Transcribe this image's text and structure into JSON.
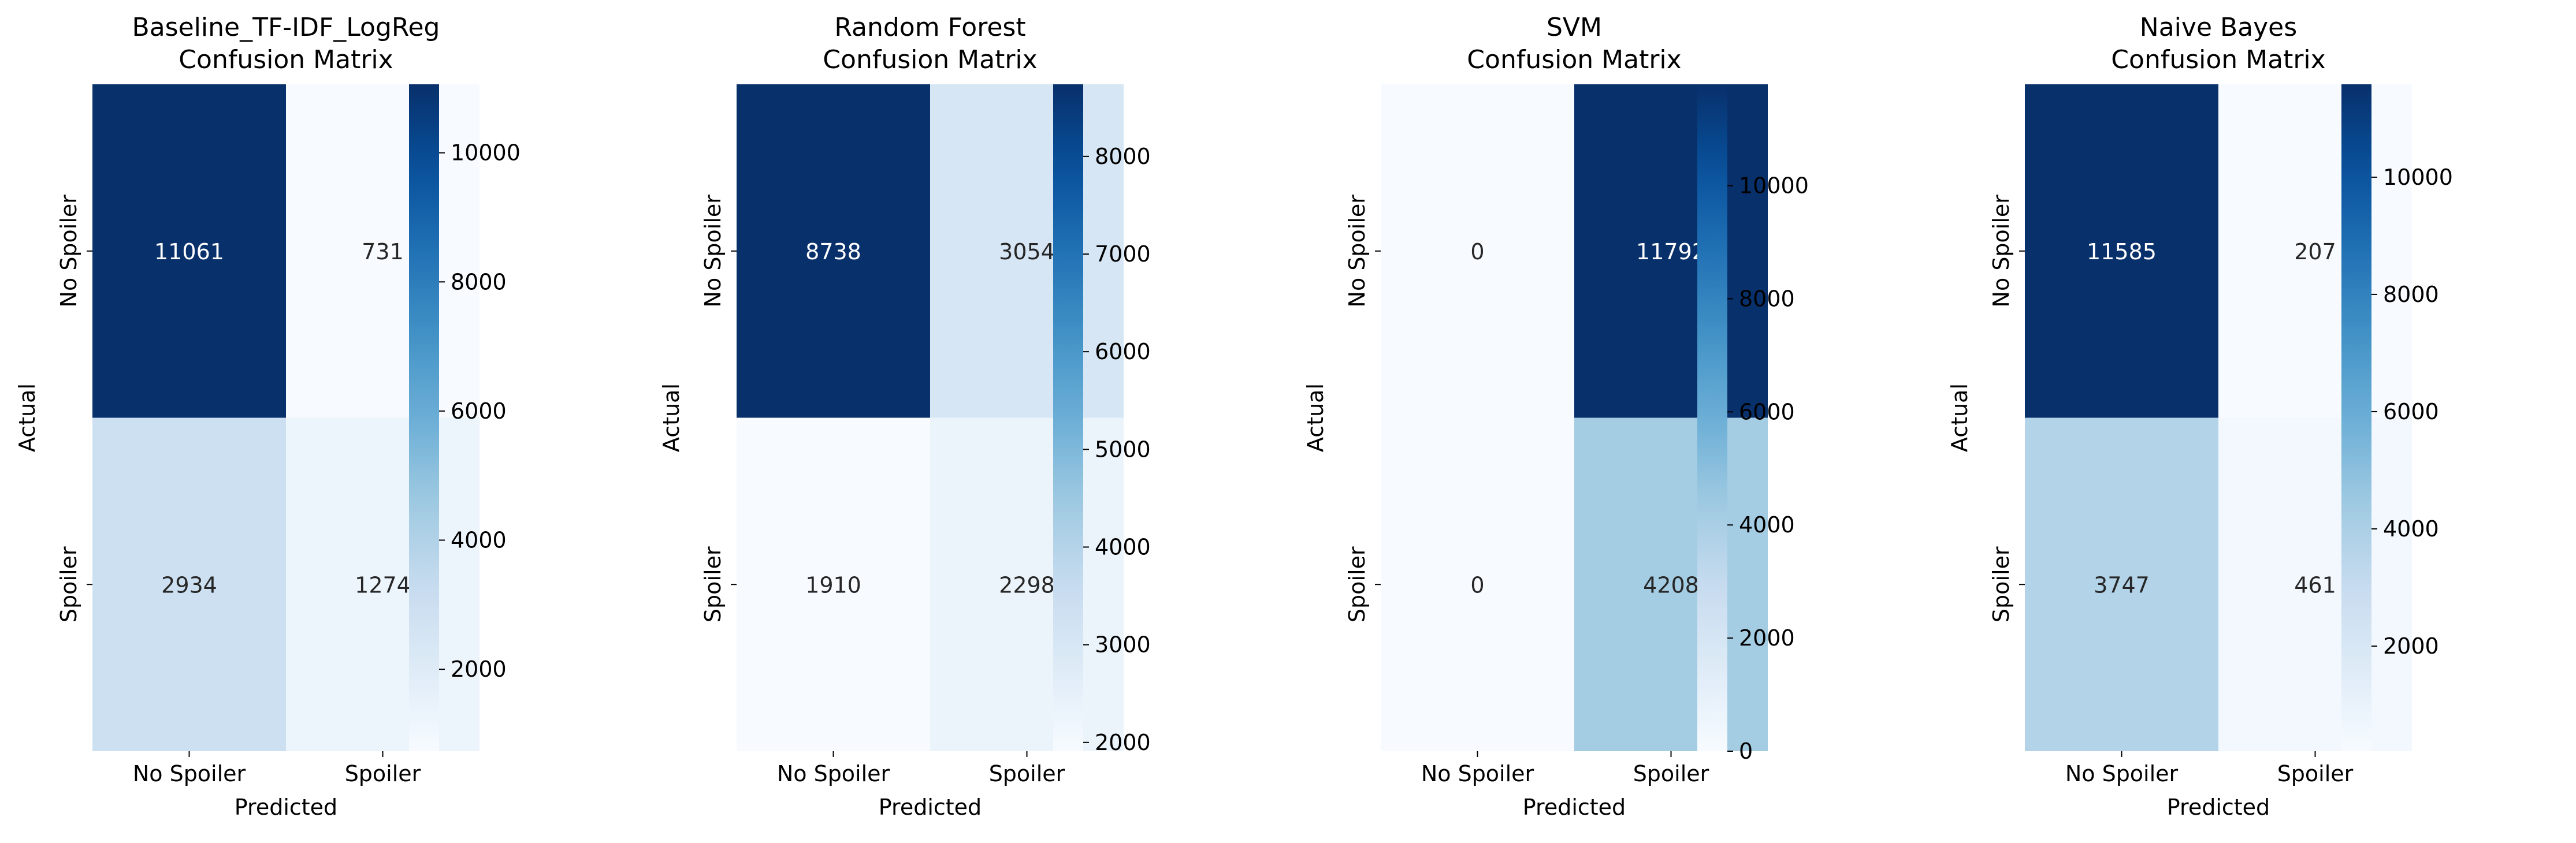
{
  "chart_data": [
    {
      "type": "heatmap",
      "title_line1": "Baseline_TF-IDF_LogReg",
      "title_line2": "Confusion Matrix",
      "xlabel": "Predicted",
      "ylabel": "Actual",
      "x_categories": [
        "No Spoiler",
        "Spoiler"
      ],
      "y_categories": [
        "No Spoiler",
        "Spoiler"
      ],
      "values": [
        [
          11061,
          731
        ],
        [
          2934,
          1274
        ]
      ],
      "colormap": "Blues",
      "colorbar_ticks": [
        2000,
        4000,
        6000,
        8000,
        10000
      ]
    },
    {
      "type": "heatmap",
      "title_line1": "Random Forest",
      "title_line2": "Confusion Matrix",
      "xlabel": "Predicted",
      "ylabel": "Actual",
      "x_categories": [
        "No Spoiler",
        "Spoiler"
      ],
      "y_categories": [
        "No Spoiler",
        "Spoiler"
      ],
      "values": [
        [
          8738,
          3054
        ],
        [
          1910,
          2298
        ]
      ],
      "colormap": "Blues",
      "colorbar_ticks": [
        2000,
        3000,
        4000,
        5000,
        6000,
        7000,
        8000
      ]
    },
    {
      "type": "heatmap",
      "title_line1": "SVM",
      "title_line2": "Confusion Matrix",
      "xlabel": "Predicted",
      "ylabel": "Actual",
      "x_categories": [
        "No Spoiler",
        "Spoiler"
      ],
      "y_categories": [
        "No Spoiler",
        "Spoiler"
      ],
      "values": [
        [
          0,
          11792
        ],
        [
          0,
          4208
        ]
      ],
      "colormap": "Blues",
      "colorbar_ticks": [
        0,
        2000,
        4000,
        6000,
        8000,
        10000
      ]
    },
    {
      "type": "heatmap",
      "title_line1": "Naive Bayes",
      "title_line2": "Confusion Matrix",
      "xlabel": "Predicted",
      "ylabel": "Actual",
      "x_categories": [
        "No Spoiler",
        "Spoiler"
      ],
      "y_categories": [
        "No Spoiler",
        "Spoiler"
      ],
      "values": [
        [
          11585,
          207
        ],
        [
          3747,
          461
        ]
      ],
      "colormap": "Blues",
      "colorbar_ticks": [
        2000,
        4000,
        6000,
        8000,
        10000
      ]
    }
  ],
  "colors": {
    "blues": [
      "#f7fbff",
      "#deebf7",
      "#c6dbef",
      "#9ecae1",
      "#6baed6",
      "#4292c6",
      "#2171b5",
      "#08519c",
      "#08306b"
    ],
    "text_dark": "#262626",
    "text_light": "#ffffff",
    "axis": "#000000"
  }
}
